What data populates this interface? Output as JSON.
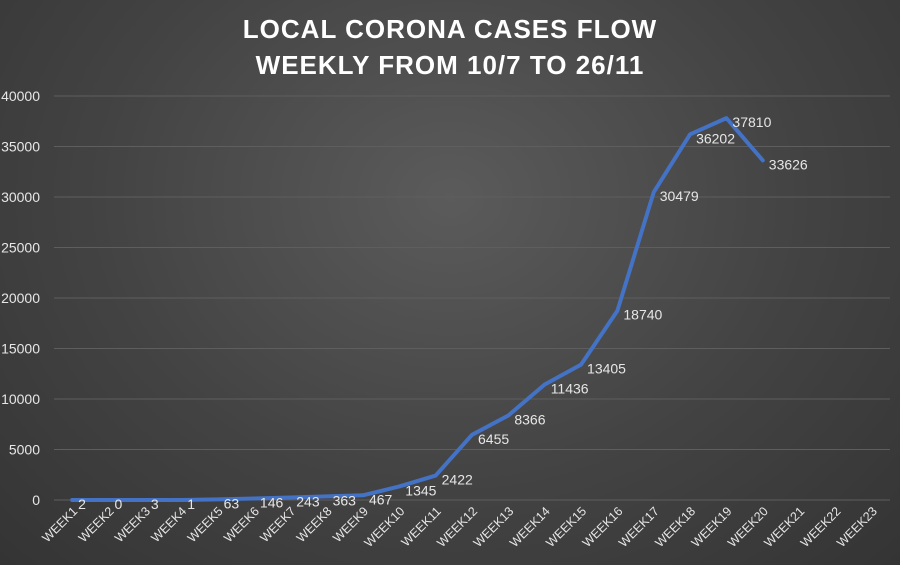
{
  "chart_data": {
    "type": "line",
    "title": "LOCAL CORONA CASES FLOW",
    "subtitle": "WEEKLY FROM 10/7  TO 26/11",
    "xlabel": "",
    "ylabel": "",
    "categories": [
      "WEEK1",
      "WEEK2",
      "WEEK3",
      "WEEK4",
      "WEEK5",
      "WEEK6",
      "WEEK7",
      "WEEK8",
      "WEEK9",
      "WEEK10",
      "WEEK11",
      "WEEK12",
      "WEEK13",
      "WEEK14",
      "WEEK15",
      "WEEK16",
      "WEEK17",
      "WEEK18",
      "WEEK19",
      "WEEK20",
      "WEEK21",
      "WEEK22",
      "WEEK23"
    ],
    "series": [
      {
        "values": [
          2,
          0,
          3,
          1,
          63,
          146,
          243,
          363,
          467,
          1345,
          2422,
          6455,
          8366,
          11436,
          13405,
          18740,
          30479,
          36202,
          37810,
          33626,
          null,
          null,
          null
        ],
        "color": "#4472c4"
      }
    ],
    "data_labels": [
      "2",
      "0",
      "3",
      "1",
      "63",
      "146",
      "243",
      "363",
      "467",
      "1345",
      "2422",
      "6455",
      "8366",
      "11436",
      "13405",
      "18740",
      "30479",
      "36202",
      "37810",
      "33626"
    ],
    "ylim": [
      0,
      40000
    ],
    "yticks": [
      0,
      5000,
      10000,
      15000,
      20000,
      25000,
      30000,
      35000,
      40000
    ],
    "ytick_labels": [
      "0",
      "5000",
      "10000",
      "15000",
      "20000",
      "25000",
      "30000",
      "35000",
      "40000"
    ],
    "grid": true,
    "legend": "none",
    "colors": {
      "background": "#404040",
      "text": "#e6e6e6",
      "title": "#ffffff",
      "grid": "#5e5e5e",
      "line": "#4472c4"
    }
  }
}
